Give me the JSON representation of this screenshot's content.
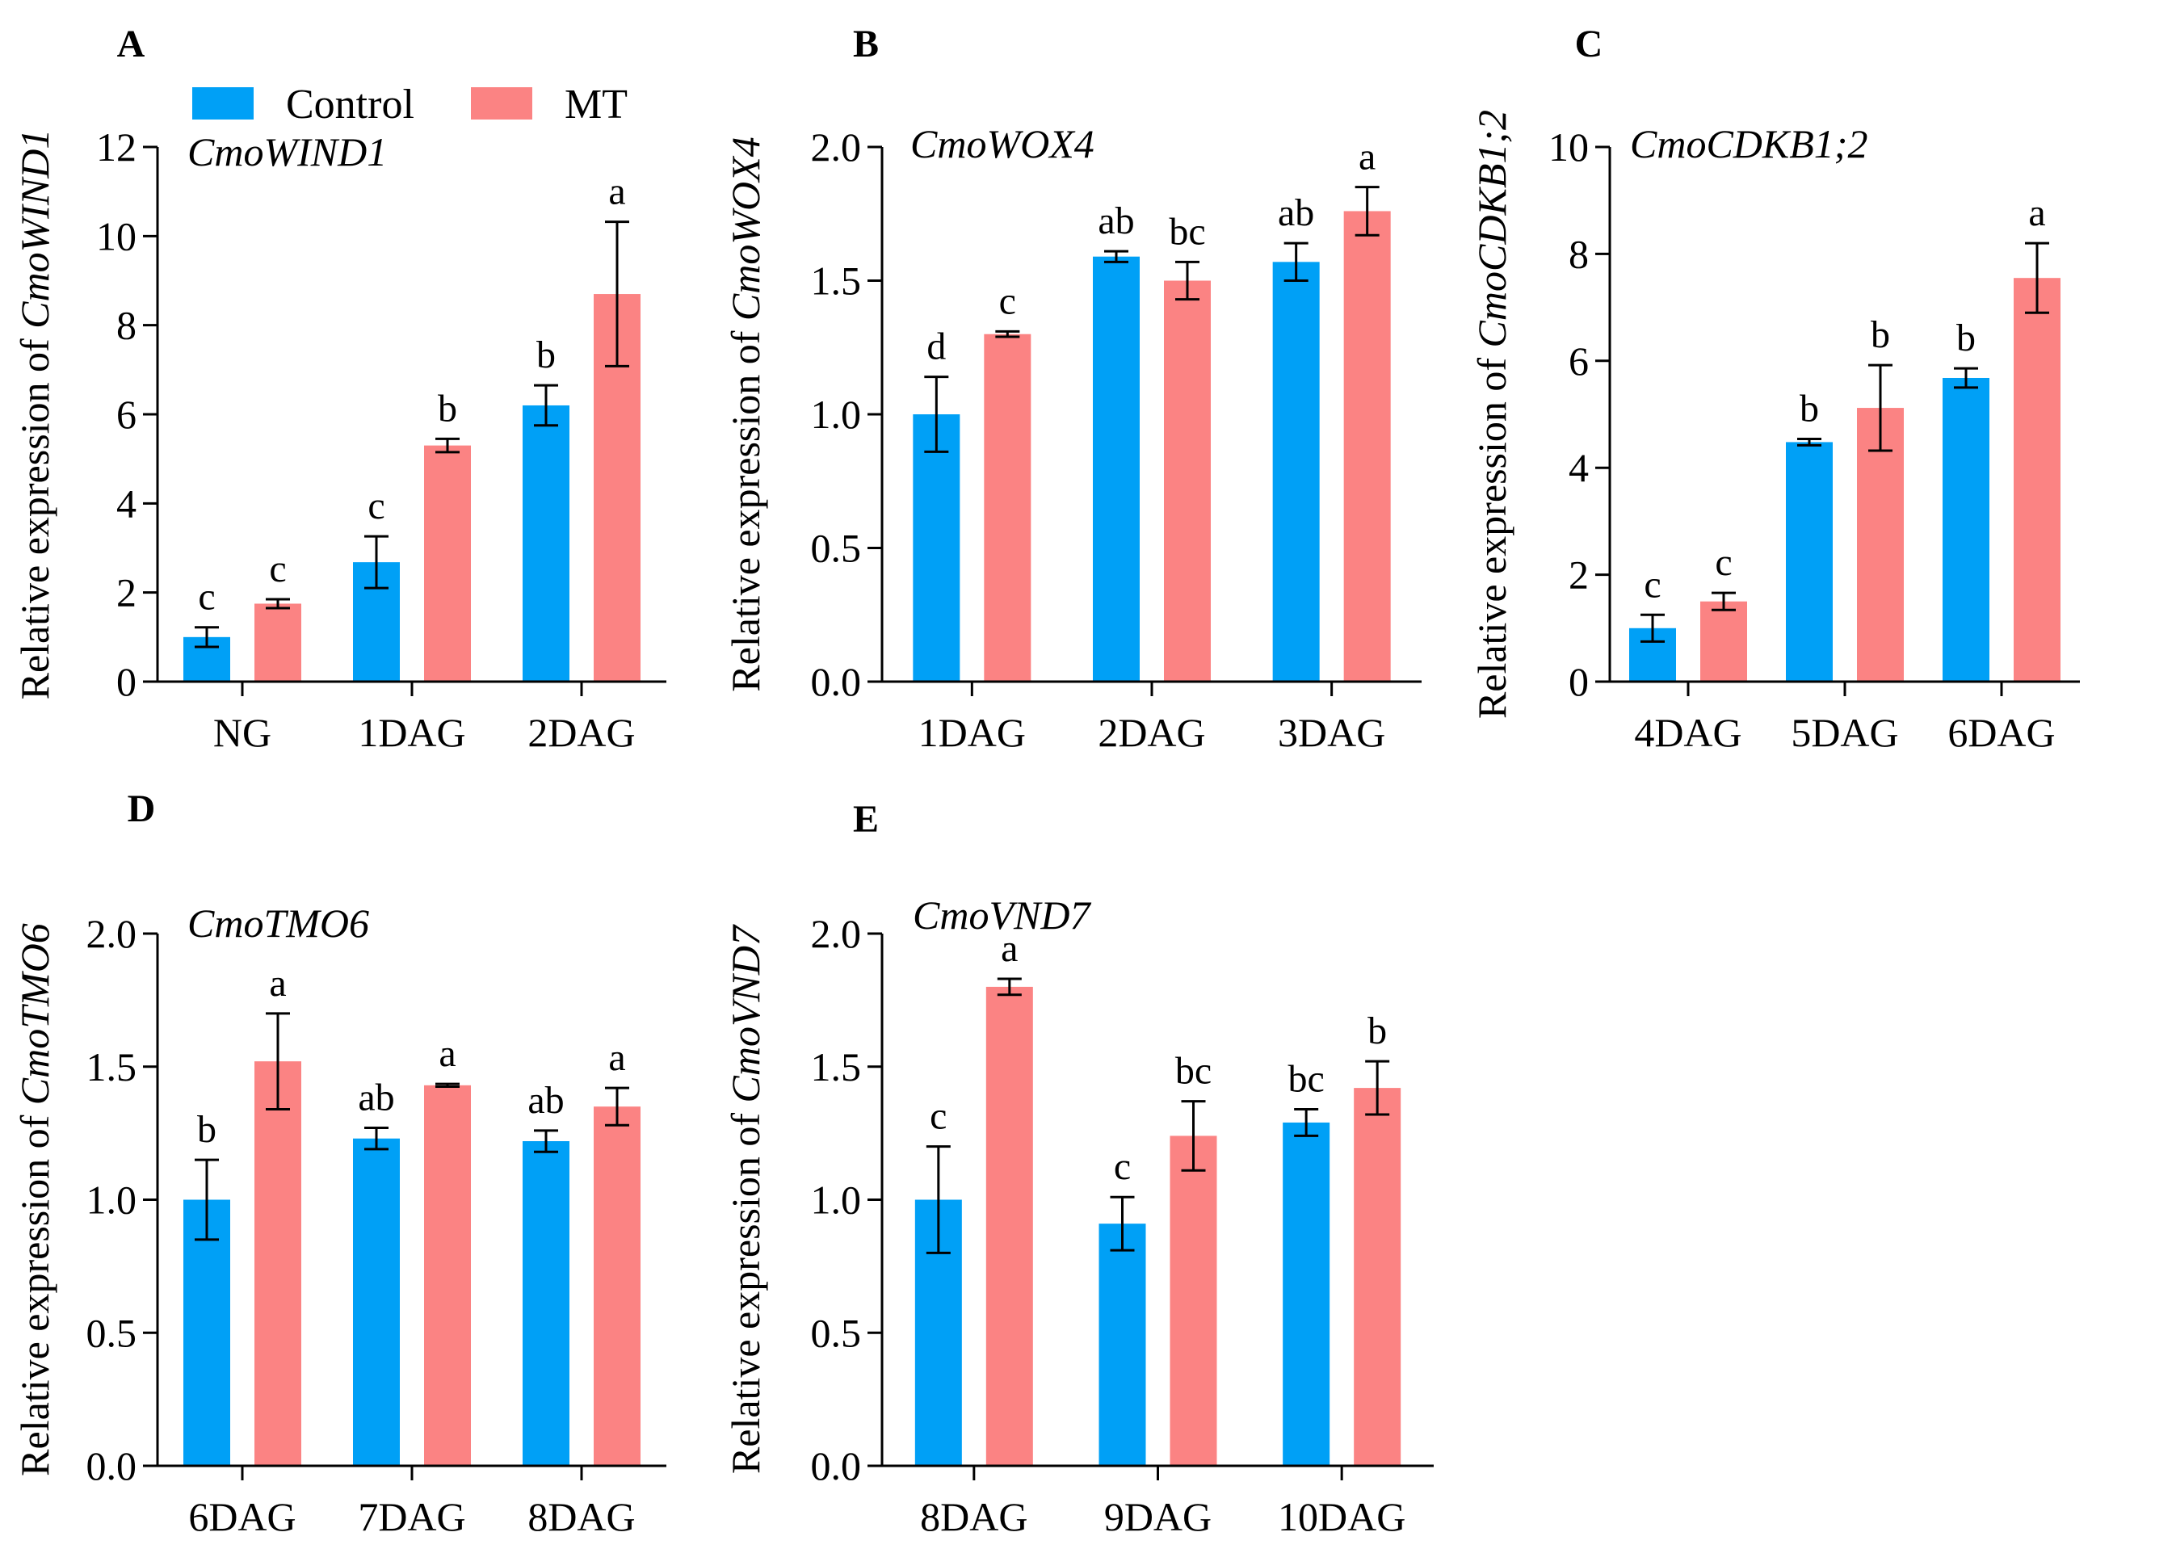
{
  "colors": {
    "control": "#00a0f6",
    "mt": "#fb8383",
    "axis": "#000000"
  },
  "legend": [
    {
      "name": "Control",
      "color": "#00a0f6"
    },
    {
      "name": "MT",
      "color": "#fb8383"
    }
  ],
  "chart_data": [
    {
      "panel": "A",
      "type": "bar",
      "title": "CmoWIND1",
      "ylabel_prefix": "Relative expression of ",
      "ylabel_gene": "CmoWIND1",
      "categories": [
        "NG",
        "1DAG",
        "2DAG"
      ],
      "ylim": [
        0,
        12
      ],
      "yticks": [
        0,
        2,
        4,
        6,
        8,
        10,
        12
      ],
      "yticklabels": [
        "0",
        "2",
        "4",
        "6",
        "8",
        "10",
        "12"
      ],
      "series": [
        {
          "name": "Control",
          "values": [
            1.0,
            2.68,
            6.2
          ],
          "errors": [
            0.22,
            0.58,
            0.45
          ],
          "letters": [
            "c",
            "c",
            "b"
          ]
        },
        {
          "name": "MT",
          "values": [
            1.75,
            5.3,
            8.7
          ],
          "errors": [
            0.1,
            0.15,
            1.62
          ],
          "letters": [
            "c",
            "b",
            "a"
          ]
        }
      ]
    },
    {
      "panel": "B",
      "type": "bar",
      "title": "CmoWOX4",
      "ylabel_prefix": "Relative expression of ",
      "ylabel_gene": "CmoWOX4",
      "categories": [
        "1DAG",
        "2DAG",
        "3DAG"
      ],
      "ylim": [
        0,
        2.0
      ],
      "yticks": [
        0,
        0.5,
        1.0,
        1.5,
        2.0
      ],
      "yticklabels": [
        "0.0",
        "0.5",
        "1.0",
        "1.5",
        "2.0"
      ],
      "series": [
        {
          "name": "Control",
          "values": [
            1.0,
            1.59,
            1.57
          ],
          "errors": [
            0.14,
            0.02,
            0.07
          ],
          "letters": [
            "d",
            "ab",
            "ab"
          ]
        },
        {
          "name": "MT",
          "values": [
            1.3,
            1.5,
            1.76
          ],
          "errors": [
            0.01,
            0.07,
            0.09
          ],
          "letters": [
            "c",
            "bc",
            "a"
          ]
        }
      ]
    },
    {
      "panel": "C",
      "type": "bar",
      "title": "CmoCDKB1;2",
      "ylabel_prefix": "Relative expression of ",
      "ylabel_gene": "CmoCDKB1;2",
      "categories": [
        "4DAG",
        "5DAG",
        "6DAG"
      ],
      "ylim": [
        0,
        10
      ],
      "yticks": [
        0,
        2,
        4,
        6,
        8,
        10
      ],
      "yticklabels": [
        "0",
        "2",
        "4",
        "6",
        "8",
        "10"
      ],
      "series": [
        {
          "name": "Control",
          "values": [
            1.0,
            4.48,
            5.68
          ],
          "errors": [
            0.25,
            0.06,
            0.18
          ],
          "letters": [
            "c",
            "b",
            "b"
          ]
        },
        {
          "name": "MT",
          "values": [
            1.5,
            5.12,
            7.55
          ],
          "errors": [
            0.16,
            0.8,
            0.65
          ],
          "letters": [
            "c",
            "b",
            "a"
          ]
        }
      ]
    },
    {
      "panel": "D",
      "type": "bar",
      "title": "CmoTMO6",
      "ylabel_prefix": "Relative expression of ",
      "ylabel_gene": "CmoTMO6",
      "categories": [
        "6DAG",
        "7DAG",
        "8DAG"
      ],
      "ylim": [
        0,
        2.0
      ],
      "yticks": [
        0,
        0.5,
        1.0,
        1.5,
        2.0
      ],
      "yticklabels": [
        "0.0",
        "0.5",
        "1.0",
        "1.5",
        "2.0"
      ],
      "series": [
        {
          "name": "Control",
          "values": [
            1.0,
            1.23,
            1.22
          ],
          "errors": [
            0.15,
            0.04,
            0.04
          ],
          "letters": [
            "b",
            "ab",
            "ab"
          ]
        },
        {
          "name": "MT",
          "values": [
            1.52,
            1.43,
            1.35
          ],
          "errors": [
            0.18,
            0.005,
            0.07
          ],
          "letters": [
            "a",
            "a",
            "a"
          ]
        }
      ]
    },
    {
      "panel": "E",
      "type": "bar",
      "title": "CmoVND7",
      "ylabel_prefix": "Relative expression of ",
      "ylabel_gene": "CmoVND7",
      "categories": [
        "8DAG",
        "9DAG",
        "10DAG"
      ],
      "ylim": [
        0,
        2.0
      ],
      "yticks": [
        0,
        0.5,
        1.0,
        1.5,
        2.0
      ],
      "yticklabels": [
        "0.0",
        "0.5",
        "1.0",
        "1.5",
        "2.0"
      ],
      "series": [
        {
          "name": "Control",
          "values": [
            1.0,
            0.91,
            1.29
          ],
          "errors": [
            0.2,
            0.1,
            0.05
          ],
          "letters": [
            "c",
            "c",
            "bc"
          ]
        },
        {
          "name": "MT",
          "values": [
            1.8,
            1.24,
            1.42
          ],
          "errors": [
            0.03,
            0.13,
            0.1
          ],
          "letters": [
            "a",
            "bc",
            "b"
          ]
        }
      ]
    }
  ]
}
